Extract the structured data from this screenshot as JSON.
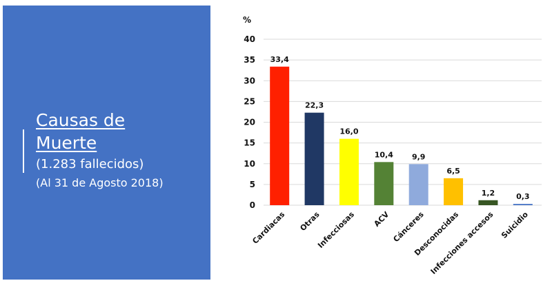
{
  "panel": {
    "title_line1": "Causas de",
    "title_line2": "Muerte",
    "subtitle": "(1.283 fallecidos)",
    "date": "(Al 31 de Agosto 2018)",
    "background_color": "#4472c4"
  },
  "chart_data": {
    "type": "bar",
    "title": "",
    "xlabel": "",
    "ylabel": "%",
    "ylim": [
      0,
      40
    ],
    "yticks": [
      0,
      5,
      10,
      15,
      20,
      25,
      30,
      35,
      40
    ],
    "grid": true,
    "categories": [
      "Cardiacas",
      "Otras",
      "Infecciosas",
      "ACV",
      "Cánceres",
      "Desconocidas",
      "Infecciones accesos",
      "Suicidio"
    ],
    "values": [
      33.4,
      22.3,
      16.0,
      10.4,
      9.9,
      6.5,
      1.2,
      0.3
    ],
    "value_labels": [
      "33,4",
      "22,3",
      "16,0",
      "10,4",
      "9,9",
      "6,5",
      "1,2",
      "0,3"
    ],
    "colors": [
      "#ff2000",
      "#203864",
      "#ffff00",
      "#548235",
      "#8faadc",
      "#ffc000",
      "#375623",
      "#4472c4"
    ]
  }
}
